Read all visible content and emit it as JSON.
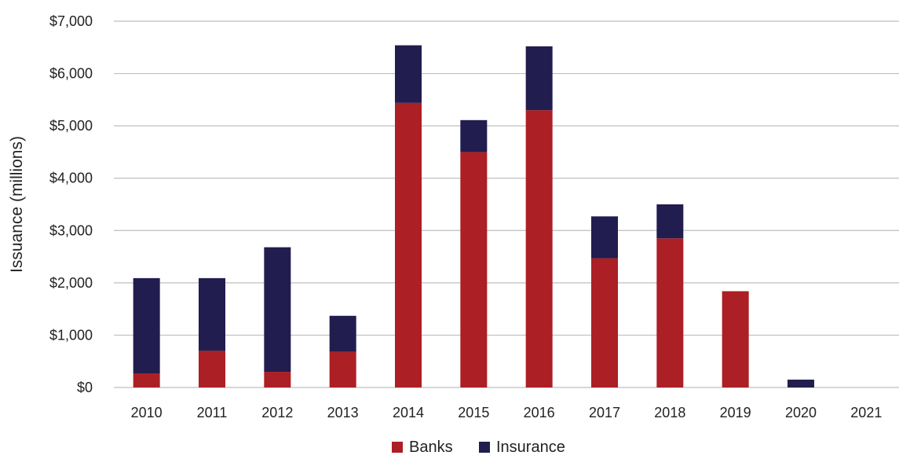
{
  "chart_data": {
    "type": "bar",
    "stacked": true,
    "title": "",
    "xlabel": "",
    "ylabel": "Issuance (millions)",
    "ylim": [
      0,
      7000
    ],
    "y_ticks": [
      0,
      1000,
      2000,
      3000,
      4000,
      5000,
      6000,
      7000
    ],
    "y_tick_labels": [
      "$0",
      "$1,000",
      "$2,000",
      "$3,000",
      "$4,000",
      "$5,000",
      "$6,000",
      "$7,000"
    ],
    "categories": [
      "2010",
      "2011",
      "2012",
      "2013",
      "2014",
      "2015",
      "2016",
      "2017",
      "2018",
      "2019",
      "2020",
      "2021"
    ],
    "series": [
      {
        "name": "Banks",
        "color": "#ac1f24",
        "values": [
          270,
          700,
          300,
          680,
          5440,
          4500,
          5300,
          2470,
          2850,
          1840,
          0,
          0
        ]
      },
      {
        "name": "Insurance",
        "color": "#211d4f",
        "values": [
          1820,
          1390,
          2380,
          690,
          1100,
          610,
          1220,
          800,
          650,
          0,
          150,
          0
        ]
      }
    ],
    "grid": true,
    "legend_position": "bottom-center"
  }
}
